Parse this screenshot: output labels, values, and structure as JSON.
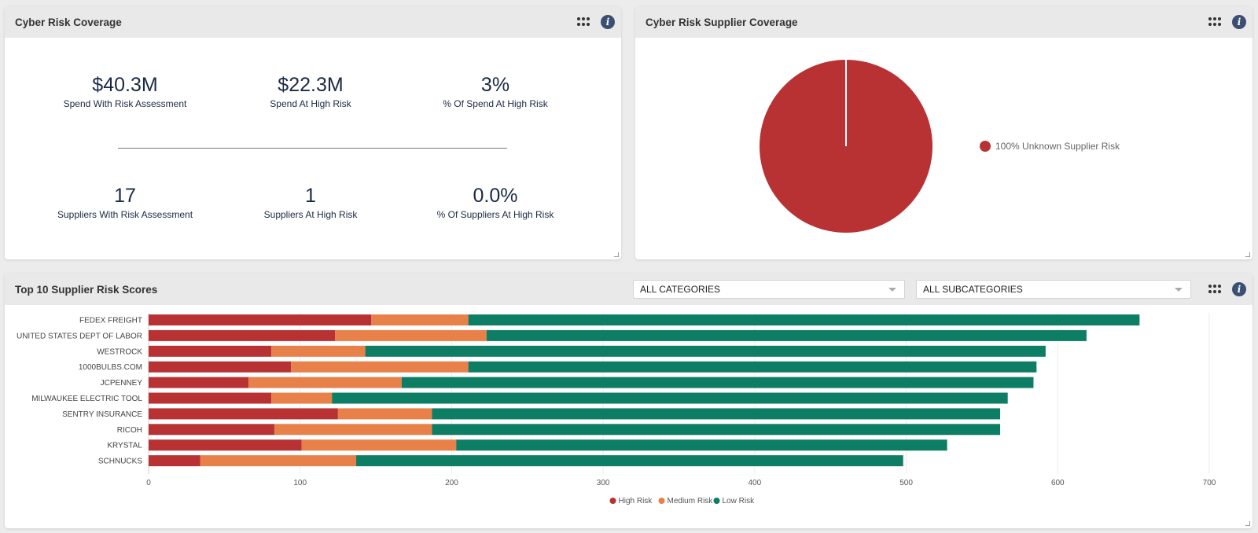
{
  "colors": {
    "high": "#b83234",
    "medium": "#e8804a",
    "low": "#0d7e63"
  },
  "coverage": {
    "title": "Cyber Risk Coverage",
    "kpis": [
      {
        "value": "$40.3M",
        "label": "Spend With Risk Assessment"
      },
      {
        "value": "$22.3M",
        "label": "Spend At High Risk"
      },
      {
        "value": "3%",
        "label": "% Of Spend At High Risk"
      },
      {
        "value": "17",
        "label": "Suppliers With Risk Assessment"
      },
      {
        "value": "1",
        "label": "Suppliers At High Risk"
      },
      {
        "value": "0.0%",
        "label": "% Of Suppliers At High Risk"
      }
    ]
  },
  "supplier_coverage": {
    "title": "Cyber Risk Supplier Coverage",
    "legend_label": "100% Unknown Supplier Risk"
  },
  "top10": {
    "title": "Top 10 Supplier Risk Scores",
    "category_select": "ALL CATEGORIES",
    "subcategory_select": "ALL SUBCATEGORIES"
  },
  "chart_data": [
    {
      "type": "pie",
      "title": "Cyber Risk Supplier Coverage",
      "categories": [
        "Unknown Supplier Risk"
      ],
      "values": [
        100
      ],
      "legend": [
        "100% Unknown Supplier Risk"
      ]
    },
    {
      "type": "bar",
      "orientation": "horizontal",
      "stacked": true,
      "title": "Top 10 Supplier Risk Scores",
      "categories": [
        "FEDEX FREIGHT",
        "UNITED STATES DEPT OF LABOR",
        "WESTROCK",
        "1000BULBS.COM",
        "JCPENNEY",
        "MILWAUKEE ELECTRIC TOOL",
        "SENTRY INSURANCE",
        "RICOH",
        "KRYSTAL",
        "SCHNUCKS"
      ],
      "series": [
        {
          "name": "High Risk",
          "values": [
            147,
            123,
            81,
            94,
            66,
            81,
            125,
            83,
            101,
            34
          ]
        },
        {
          "name": "Medium Risk",
          "values": [
            64,
            100,
            62,
            117,
            101,
            40,
            62,
            104,
            102,
            103
          ]
        },
        {
          "name": "Low Risk",
          "values": [
            443,
            396,
            449,
            375,
            417,
            446,
            375,
            375,
            324,
            361
          ]
        }
      ],
      "xlim": [
        0,
        700
      ],
      "xticks": [
        0,
        100,
        200,
        300,
        400,
        500,
        600,
        700
      ],
      "legend_position": "bottom"
    }
  ]
}
